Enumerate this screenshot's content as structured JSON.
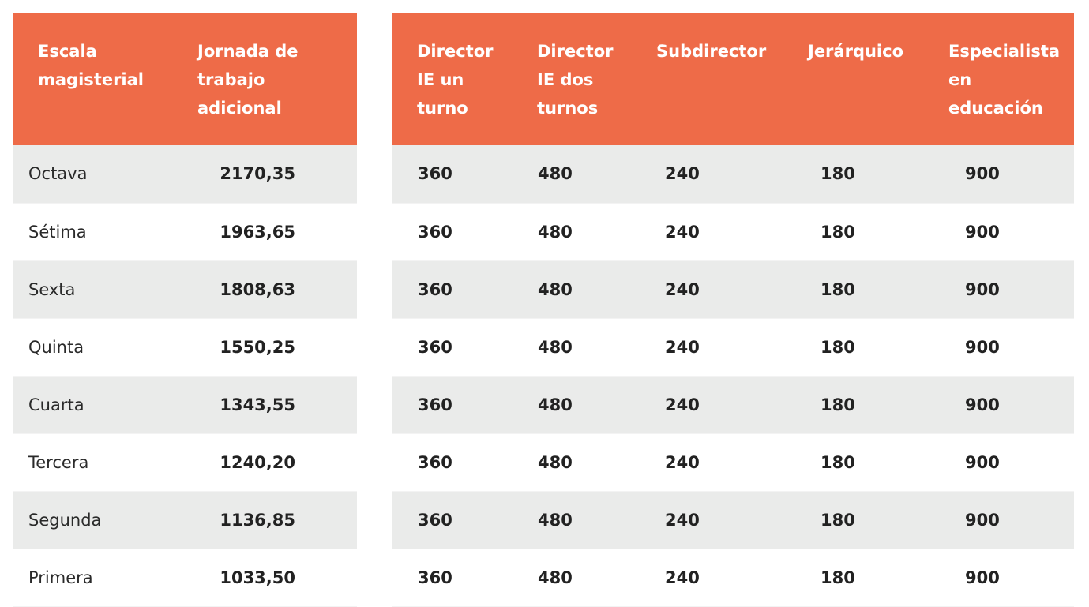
{
  "colors": {
    "header_bg": "#ee6b48",
    "row_alt_bg": "#eaebea",
    "row_bg": "#ffffff",
    "header_text": "#ffffff"
  },
  "left_table": {
    "headers": [
      "Escala magisterial",
      "Jornada de trabajo adicional"
    ],
    "rows": [
      {
        "escala": "Octava",
        "jornada": "2170,35"
      },
      {
        "escala": "Sétima",
        "jornada": "1963,65"
      },
      {
        "escala": "Sexta",
        "jornada": "1808,63"
      },
      {
        "escala": "Quinta",
        "jornada": "1550,25"
      },
      {
        "escala": "Cuarta",
        "jornada": "1343,55"
      },
      {
        "escala": "Tercera",
        "jornada": "1240,20"
      },
      {
        "escala": "Segunda",
        "jornada": "1136,85"
      },
      {
        "escala": "Primera",
        "jornada": "1033,50"
      }
    ]
  },
  "right_table": {
    "headers": [
      "Director IE un turno",
      "Director IE dos turnos",
      "Subdirector",
      "Jerárquico",
      "Especialista en educación"
    ],
    "rows": [
      [
        "360",
        "480",
        "240",
        "180",
        "900"
      ],
      [
        "360",
        "480",
        "240",
        "180",
        "900"
      ],
      [
        "360",
        "480",
        "240",
        "180",
        "900"
      ],
      [
        "360",
        "480",
        "240",
        "180",
        "900"
      ],
      [
        "360",
        "480",
        "240",
        "180",
        "900"
      ],
      [
        "360",
        "480",
        "240",
        "180",
        "900"
      ],
      [
        "360",
        "480",
        "240",
        "180",
        "900"
      ],
      [
        "360",
        "480",
        "240",
        "180",
        "900"
      ]
    ]
  }
}
